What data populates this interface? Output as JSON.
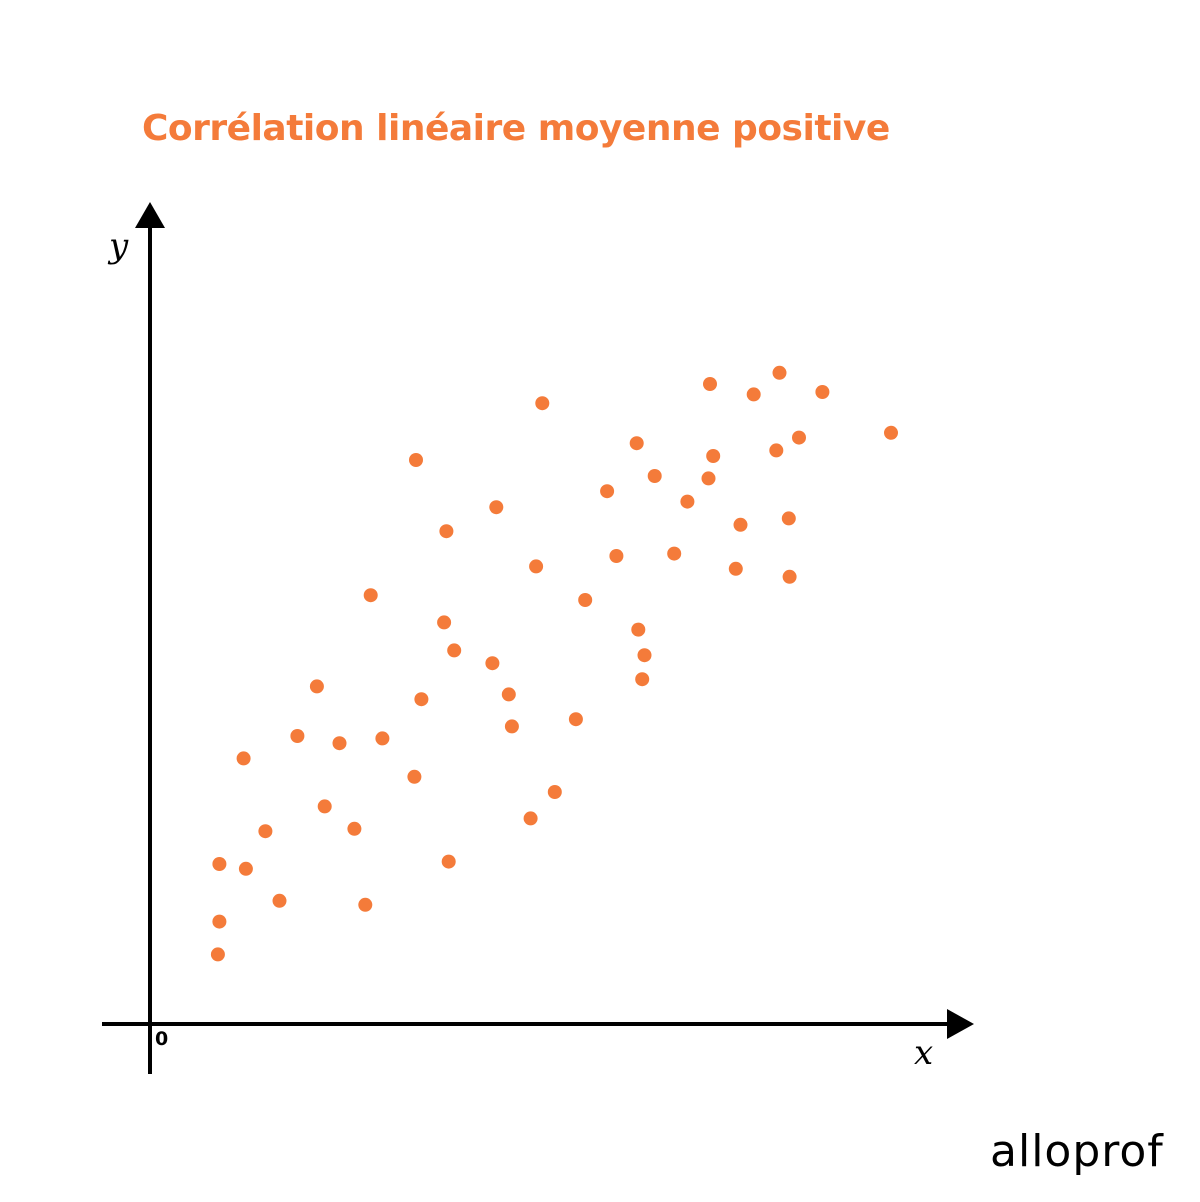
{
  "brand": {
    "logo_text": "alloprof",
    "accent_color": "#F47B3A",
    "axis_color": "#000000"
  },
  "chart_data": {
    "type": "scatter",
    "title": "Corrélation linéaire moyenne positive",
    "xlabel": "x",
    "ylabel": "y",
    "origin_label": "0",
    "xlim": [
      0,
      100
    ],
    "ylim": [
      0,
      100
    ],
    "grid": false,
    "legend": "none",
    "series": [
      {
        "points": [
          [
            8.7,
            8.7
          ],
          [
            8.9,
            12.8
          ],
          [
            8.9,
            20.0
          ],
          [
            12.0,
            33.2
          ],
          [
            12.3,
            19.4
          ],
          [
            14.8,
            24.1
          ],
          [
            16.6,
            15.4
          ],
          [
            18.9,
            36.0
          ],
          [
            21.4,
            42.2
          ],
          [
            22.4,
            27.2
          ],
          [
            24.3,
            35.1
          ],
          [
            26.2,
            24.4
          ],
          [
            27.6,
            14.9
          ],
          [
            28.3,
            53.6
          ],
          [
            29.8,
            35.7
          ],
          [
            33.9,
            30.9
          ],
          [
            34.1,
            70.5
          ],
          [
            34.8,
            40.6
          ],
          [
            37.7,
            50.2
          ],
          [
            38.0,
            61.6
          ],
          [
            38.3,
            20.3
          ],
          [
            39.0,
            46.7
          ],
          [
            43.9,
            45.1
          ],
          [
            44.4,
            64.6
          ],
          [
            46.0,
            41.2
          ],
          [
            46.4,
            37.2
          ],
          [
            48.8,
            25.7
          ],
          [
            49.5,
            57.2
          ],
          [
            50.3,
            77.6
          ],
          [
            51.9,
            29.0
          ],
          [
            54.6,
            38.1
          ],
          [
            55.8,
            53.0
          ],
          [
            58.6,
            66.6
          ],
          [
            59.8,
            58.5
          ],
          [
            62.4,
            72.6
          ],
          [
            62.6,
            49.3
          ],
          [
            63.1,
            43.1
          ],
          [
            63.4,
            46.1
          ],
          [
            64.7,
            68.5
          ],
          [
            67.2,
            58.8
          ],
          [
            68.9,
            65.3
          ],
          [
            71.6,
            68.2
          ],
          [
            71.8,
            80.0
          ],
          [
            72.2,
            71.0
          ],
          [
            75.1,
            56.9
          ],
          [
            75.7,
            62.4
          ],
          [
            77.4,
            78.7
          ],
          [
            80.3,
            71.7
          ],
          [
            80.7,
            81.4
          ],
          [
            81.9,
            63.2
          ],
          [
            82.0,
            55.9
          ],
          [
            83.2,
            73.3
          ],
          [
            86.2,
            79.0
          ],
          [
            95.0,
            73.9
          ]
        ]
      }
    ]
  }
}
